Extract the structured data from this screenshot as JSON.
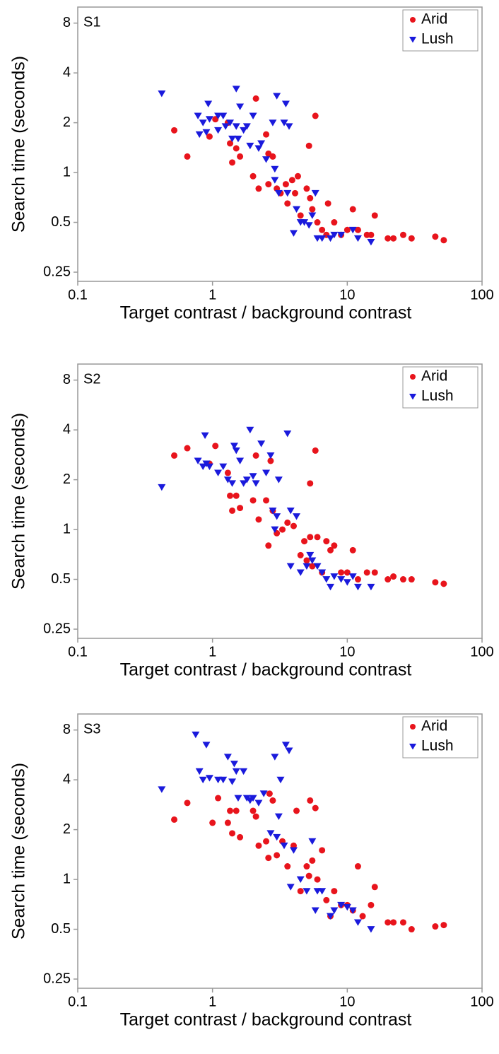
{
  "chart_data": [
    {
      "type": "scatter",
      "title": "S1",
      "xlabel": "Target contrast / background contrast",
      "ylabel": "Search time (seconds)",
      "xscale": "log",
      "yscale": "log",
      "xlim": [
        0.1,
        100
      ],
      "ylim": [
        0.22,
        10
      ],
      "xticks": [
        0.1,
        1,
        10,
        100
      ],
      "yticks": [
        0.25,
        0.5,
        1,
        2,
        4,
        8
      ],
      "legend": "upper right",
      "series": [
        {
          "name": "Arid",
          "color": "#e8141c",
          "marker": "circle",
          "x": [
            0.52,
            0.65,
            0.95,
            1.05,
            1.3,
            1.35,
            1.4,
            1.5,
            1.6,
            2.0,
            2.1,
            2.2,
            2.5,
            2.6,
            2.6,
            2.8,
            3.0,
            3.2,
            3.5,
            3.6,
            3.9,
            4.1,
            4.3,
            4.5,
            5.0,
            5.2,
            5.3,
            5.5,
            5.8,
            6,
            6.5,
            7,
            7.2,
            8,
            9,
            10,
            11,
            12,
            14,
            15,
            16,
            20,
            22,
            26,
            30,
            45,
            52
          ],
          "y": [
            1.8,
            1.25,
            1.65,
            2.1,
            2.0,
            1.5,
            1.15,
            1.4,
            1.25,
            0.95,
            2.8,
            0.8,
            1.7,
            1.3,
            0.85,
            1.25,
            0.8,
            0.75,
            0.85,
            0.65,
            0.9,
            0.75,
            0.95,
            0.55,
            0.8,
            1.45,
            0.7,
            0.6,
            2.2,
            0.5,
            0.45,
            0.42,
            0.65,
            0.5,
            0.42,
            0.45,
            0.6,
            0.45,
            0.42,
            0.42,
            0.55,
            0.4,
            0.4,
            0.42,
            0.4,
            0.41,
            0.39
          ]
        },
        {
          "name": "Lush",
          "color": "#1a1adc",
          "marker": "triangle-down",
          "x": [
            0.42,
            0.78,
            0.8,
            0.85,
            0.9,
            0.93,
            0.95,
            1.1,
            1.1,
            1.2,
            1.25,
            1.35,
            1.4,
            1.5,
            1.5,
            1.55,
            1.6,
            1.7,
            1.8,
            1.9,
            2.0,
            2.2,
            2.3,
            2.5,
            2.8,
            2.9,
            2.9,
            3.0,
            3.1,
            3.4,
            3.5,
            3.7,
            3.6,
            4.0,
            4.2,
            4.5,
            4.8,
            5.2,
            5.5,
            5.8,
            6.0,
            6.5,
            7.5,
            8,
            9,
            11,
            12,
            15
          ],
          "y": [
            3.0,
            2.2,
            1.7,
            2.0,
            1.75,
            2.6,
            2.1,
            1.8,
            2.2,
            2.2,
            1.9,
            2.0,
            1.6,
            1.9,
            3.2,
            1.6,
            2.5,
            1.8,
            1.9,
            1.45,
            2.2,
            1.4,
            1.5,
            1.2,
            2.0,
            1.05,
            0.9,
            2.9,
            0.75,
            2.0,
            2.6,
            1.9,
            0.75,
            0.43,
            0.6,
            0.5,
            0.5,
            0.48,
            0.55,
            0.75,
            0.4,
            0.4,
            0.4,
            0.42,
            0.42,
            0.45,
            0.4,
            0.38
          ]
        }
      ]
    },
    {
      "type": "scatter",
      "title": "S2",
      "xlabel": "Target contrast / background contrast",
      "ylabel": "Search time (seconds)",
      "xscale": "log",
      "yscale": "log",
      "xlim": [
        0.1,
        100
      ],
      "ylim": [
        0.22,
        10
      ],
      "xticks": [
        0.1,
        1,
        10,
        100
      ],
      "yticks": [
        0.25,
        0.5,
        1,
        2,
        4,
        8
      ],
      "legend": "upper right",
      "series": [
        {
          "name": "Arid",
          "color": "#e8141c",
          "marker": "circle",
          "x": [
            0.52,
            0.65,
            0.95,
            1.05,
            1.3,
            1.35,
            1.4,
            1.5,
            1.6,
            2.0,
            2.1,
            2.2,
            2.5,
            2.6,
            2.7,
            2.8,
            3.0,
            3.3,
            3.6,
            4.0,
            4.5,
            4.8,
            5.0,
            5.3,
            5.3,
            5.5,
            5.8,
            6,
            6.5,
            7,
            7.5,
            8,
            9,
            10,
            11,
            12,
            14,
            16,
            20,
            22,
            26,
            30,
            45,
            52
          ],
          "y": [
            2.8,
            3.1,
            2.5,
            3.2,
            2.2,
            1.6,
            1.3,
            1.6,
            1.35,
            1.5,
            2.8,
            1.15,
            1.5,
            0.8,
            2.6,
            1.3,
            0.95,
            1.0,
            1.1,
            1.05,
            0.7,
            0.85,
            0.65,
            0.9,
            1.9,
            0.6,
            3.0,
            0.9,
            0.55,
            0.85,
            0.75,
            0.8,
            0.55,
            0.55,
            0.75,
            0.5,
            0.55,
            0.55,
            0.5,
            0.52,
            0.5,
            0.5,
            0.48,
            0.47
          ]
        },
        {
          "name": "Lush",
          "color": "#1a1adc",
          "marker": "triangle-down",
          "x": [
            0.42,
            0.78,
            0.85,
            0.88,
            0.9,
            0.95,
            1.1,
            1.2,
            1.3,
            1.4,
            1.45,
            1.5,
            1.6,
            1.7,
            1.8,
            1.9,
            2.0,
            2.1,
            2.3,
            2.5,
            2.7,
            2.8,
            2.9,
            3.0,
            3.1,
            3.6,
            3.8,
            3.8,
            4.2,
            4.5,
            5.0,
            5.3,
            5.5,
            6,
            6.5,
            7,
            7.5,
            8,
            9,
            10,
            11,
            12,
            15
          ],
          "y": [
            1.8,
            2.6,
            2.4,
            3.7,
            2.5,
            2.4,
            2.2,
            2.4,
            2.0,
            1.9,
            3.2,
            3.0,
            2.6,
            1.9,
            2.0,
            4.0,
            2.1,
            1.9,
            3.3,
            2.2,
            2.8,
            1.3,
            1.0,
            1.2,
            2.0,
            3.8,
            1.3,
            0.6,
            1.2,
            0.55,
            0.6,
            0.7,
            0.65,
            0.6,
            0.55,
            0.5,
            0.45,
            0.52,
            0.5,
            0.48,
            0.52,
            0.45,
            0.45
          ]
        }
      ]
    },
    {
      "type": "scatter",
      "title": "S3",
      "xlabel": "Target contrast / background contrast",
      "ylabel": "Search time (seconds)",
      "xscale": "log",
      "yscale": "log",
      "xlim": [
        0.1,
        100
      ],
      "ylim": [
        0.22,
        10
      ],
      "xticks": [
        0.1,
        1,
        10,
        100
      ],
      "yticks": [
        0.25,
        0.5,
        1,
        2,
        4,
        8
      ],
      "legend": "upper right",
      "series": [
        {
          "name": "Arid",
          "color": "#e8141c",
          "marker": "circle",
          "x": [
            0.52,
            0.65,
            1.0,
            1.1,
            1.3,
            1.35,
            1.4,
            1.5,
            1.6,
            2.0,
            2.1,
            2.2,
            2.5,
            2.6,
            2.65,
            2.8,
            3.0,
            3.3,
            3.6,
            4.0,
            4.2,
            4.5,
            5.0,
            5.2,
            5.3,
            5.5,
            5.8,
            6,
            6.5,
            7,
            7.5,
            8,
            9,
            10,
            11,
            12,
            13,
            15,
            16,
            20,
            22,
            26,
            30,
            45,
            52
          ],
          "y": [
            2.3,
            2.9,
            2.2,
            3.1,
            2.2,
            2.6,
            1.9,
            2.6,
            1.8,
            2.6,
            2.4,
            1.6,
            1.7,
            1.35,
            3.3,
            3.0,
            1.4,
            1.7,
            1.2,
            1.6,
            2.6,
            0.85,
            1.2,
            1.05,
            3.0,
            1.3,
            2.7,
            1.0,
            1.5,
            0.75,
            0.6,
            0.85,
            0.7,
            0.7,
            0.65,
            1.2,
            0.6,
            0.7,
            0.9,
            0.55,
            0.55,
            0.55,
            0.5,
            0.52,
            0.53
          ]
        },
        {
          "name": "Lush",
          "color": "#1a1adc",
          "marker": "triangle-down",
          "x": [
            0.42,
            0.75,
            0.8,
            0.85,
            0.9,
            0.95,
            1.1,
            1.2,
            1.3,
            1.4,
            1.45,
            1.5,
            1.55,
            1.7,
            1.8,
            1.9,
            2.0,
            2.2,
            2.4,
            2.7,
            2.9,
            3.0,
            3.1,
            3.2,
            3.4,
            3.5,
            3.7,
            3.8,
            4.0,
            4.5,
            5.0,
            5.5,
            5.8,
            6,
            6.5,
            7.5,
            8,
            9,
            10,
            11,
            12,
            15
          ],
          "y": [
            3.5,
            7.5,
            4.5,
            4.0,
            6.5,
            4.1,
            4.0,
            4.0,
            5.5,
            3.9,
            5.0,
            4.5,
            3.1,
            4.5,
            3.1,
            3.0,
            3.1,
            2.9,
            3.3,
            1.9,
            5.5,
            1.8,
            2.4,
            4.0,
            1.6,
            6.5,
            6.0,
            0.9,
            1.5,
            1.0,
            0.85,
            1.7,
            0.65,
            0.85,
            0.85,
            0.6,
            0.65,
            0.7,
            0.68,
            0.65,
            0.55,
            0.5
          ]
        }
      ]
    }
  ]
}
